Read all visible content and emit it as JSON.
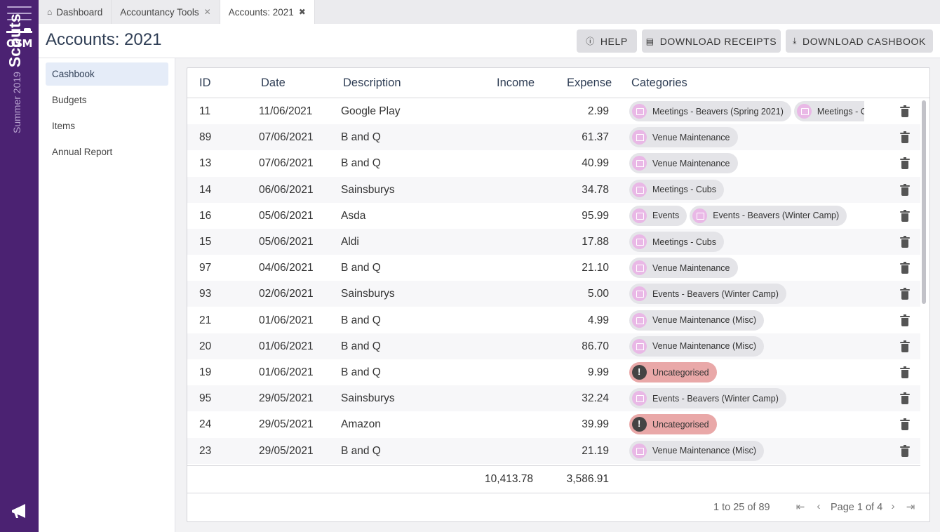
{
  "rail": {
    "season": "Summer 2019",
    "group": "Scouts",
    "logo_text": "OSM"
  },
  "tabs": [
    {
      "label": "Dashboard",
      "icon": "home-icon"
    },
    {
      "label": "Accountancy Tools",
      "icon": "close-icon"
    },
    {
      "label": "Accounts: 2021",
      "icon": "close-circle-icon"
    }
  ],
  "header": {
    "title": "Accounts: 2021",
    "help_label": "HELP",
    "download_receipts_label": "DOWNLOAD RECEIPTS",
    "download_cashbook_label": "DOWNLOAD CASHBOOK"
  },
  "sidebar": {
    "items": [
      {
        "label": "Cashbook",
        "active": true
      },
      {
        "label": "Budgets"
      },
      {
        "label": "Items"
      },
      {
        "label": "Annual Report"
      }
    ]
  },
  "grid": {
    "columns": [
      "ID",
      "Date",
      "Description",
      "Income",
      "Expense",
      "Categories"
    ],
    "rows": [
      {
        "id": "11",
        "date": "11/06/2021",
        "description": "Google Play",
        "income": "",
        "expense": "2.99",
        "categories": [
          {
            "label": "Meetings - Beavers (Spring 2021)",
            "kind": "calendar"
          },
          {
            "label": "Meetings - Cu",
            "kind": "calendar"
          }
        ]
      },
      {
        "id": "89",
        "date": "07/06/2021",
        "description": "B and Q",
        "income": "",
        "expense": "61.37",
        "categories": [
          {
            "label": "Venue Maintenance",
            "kind": "home"
          }
        ]
      },
      {
        "id": "13",
        "date": "07/06/2021",
        "description": "B and Q",
        "income": "",
        "expense": "40.99",
        "categories": [
          {
            "label": "Venue Maintenance",
            "kind": "home"
          }
        ]
      },
      {
        "id": "14",
        "date": "06/06/2021",
        "description": "Sainsburys",
        "income": "",
        "expense": "34.78",
        "categories": [
          {
            "label": "Meetings - Cubs",
            "kind": "calendar"
          }
        ]
      },
      {
        "id": "16",
        "date": "05/06/2021",
        "description": "Asda",
        "income": "",
        "expense": "95.99",
        "categories": [
          {
            "label": "Events",
            "kind": "calendar"
          },
          {
            "label": "Events - Beavers (Winter Camp)",
            "kind": "calendar"
          }
        ]
      },
      {
        "id": "15",
        "date": "05/06/2021",
        "description": "Aldi",
        "income": "",
        "expense": "17.88",
        "categories": [
          {
            "label": "Meetings - Cubs",
            "kind": "calendar"
          }
        ]
      },
      {
        "id": "97",
        "date": "04/06/2021",
        "description": "B and Q",
        "income": "",
        "expense": "21.10",
        "categories": [
          {
            "label": "Venue Maintenance",
            "kind": "home"
          }
        ]
      },
      {
        "id": "93",
        "date": "02/06/2021",
        "description": "Sainsburys",
        "income": "",
        "expense": "5.00",
        "categories": [
          {
            "label": "Events - Beavers (Winter Camp)",
            "kind": "calendar"
          }
        ]
      },
      {
        "id": "21",
        "date": "01/06/2021",
        "description": "B and Q",
        "income": "",
        "expense": "4.99",
        "categories": [
          {
            "label": "Venue Maintenance (Misc)",
            "kind": "home"
          }
        ]
      },
      {
        "id": "20",
        "date": "01/06/2021",
        "description": "B and Q",
        "income": "",
        "expense": "86.70",
        "categories": [
          {
            "label": "Venue Maintenance (Misc)",
            "kind": "home"
          }
        ]
      },
      {
        "id": "19",
        "date": "01/06/2021",
        "description": "B and Q",
        "income": "",
        "expense": "9.99",
        "categories": [
          {
            "label": "Uncategorised",
            "kind": "warning"
          }
        ]
      },
      {
        "id": "95",
        "date": "29/05/2021",
        "description": "Sainsburys",
        "income": "",
        "expense": "32.24",
        "categories": [
          {
            "label": "Events - Beavers (Winter Camp)",
            "kind": "calendar"
          }
        ]
      },
      {
        "id": "24",
        "date": "29/05/2021",
        "description": "Amazon",
        "income": "",
        "expense": "39.99",
        "categories": [
          {
            "label": "Uncategorised",
            "kind": "warning"
          }
        ]
      },
      {
        "id": "23",
        "date": "29/05/2021",
        "description": "B and Q",
        "income": "",
        "expense": "21.19",
        "categories": [
          {
            "label": "Venue Maintenance (Misc)",
            "kind": "home"
          }
        ]
      }
    ],
    "totals": {
      "income": "10,413.78",
      "expense": "3,586.91"
    },
    "pager": {
      "summary": "1 to 25 of 89",
      "page_label": "Page 1 of 4"
    }
  },
  "colors": {
    "rail": "#4b2272",
    "chip_icon": "#e9b8e6",
    "uncategorised": "#e9a8a8"
  }
}
